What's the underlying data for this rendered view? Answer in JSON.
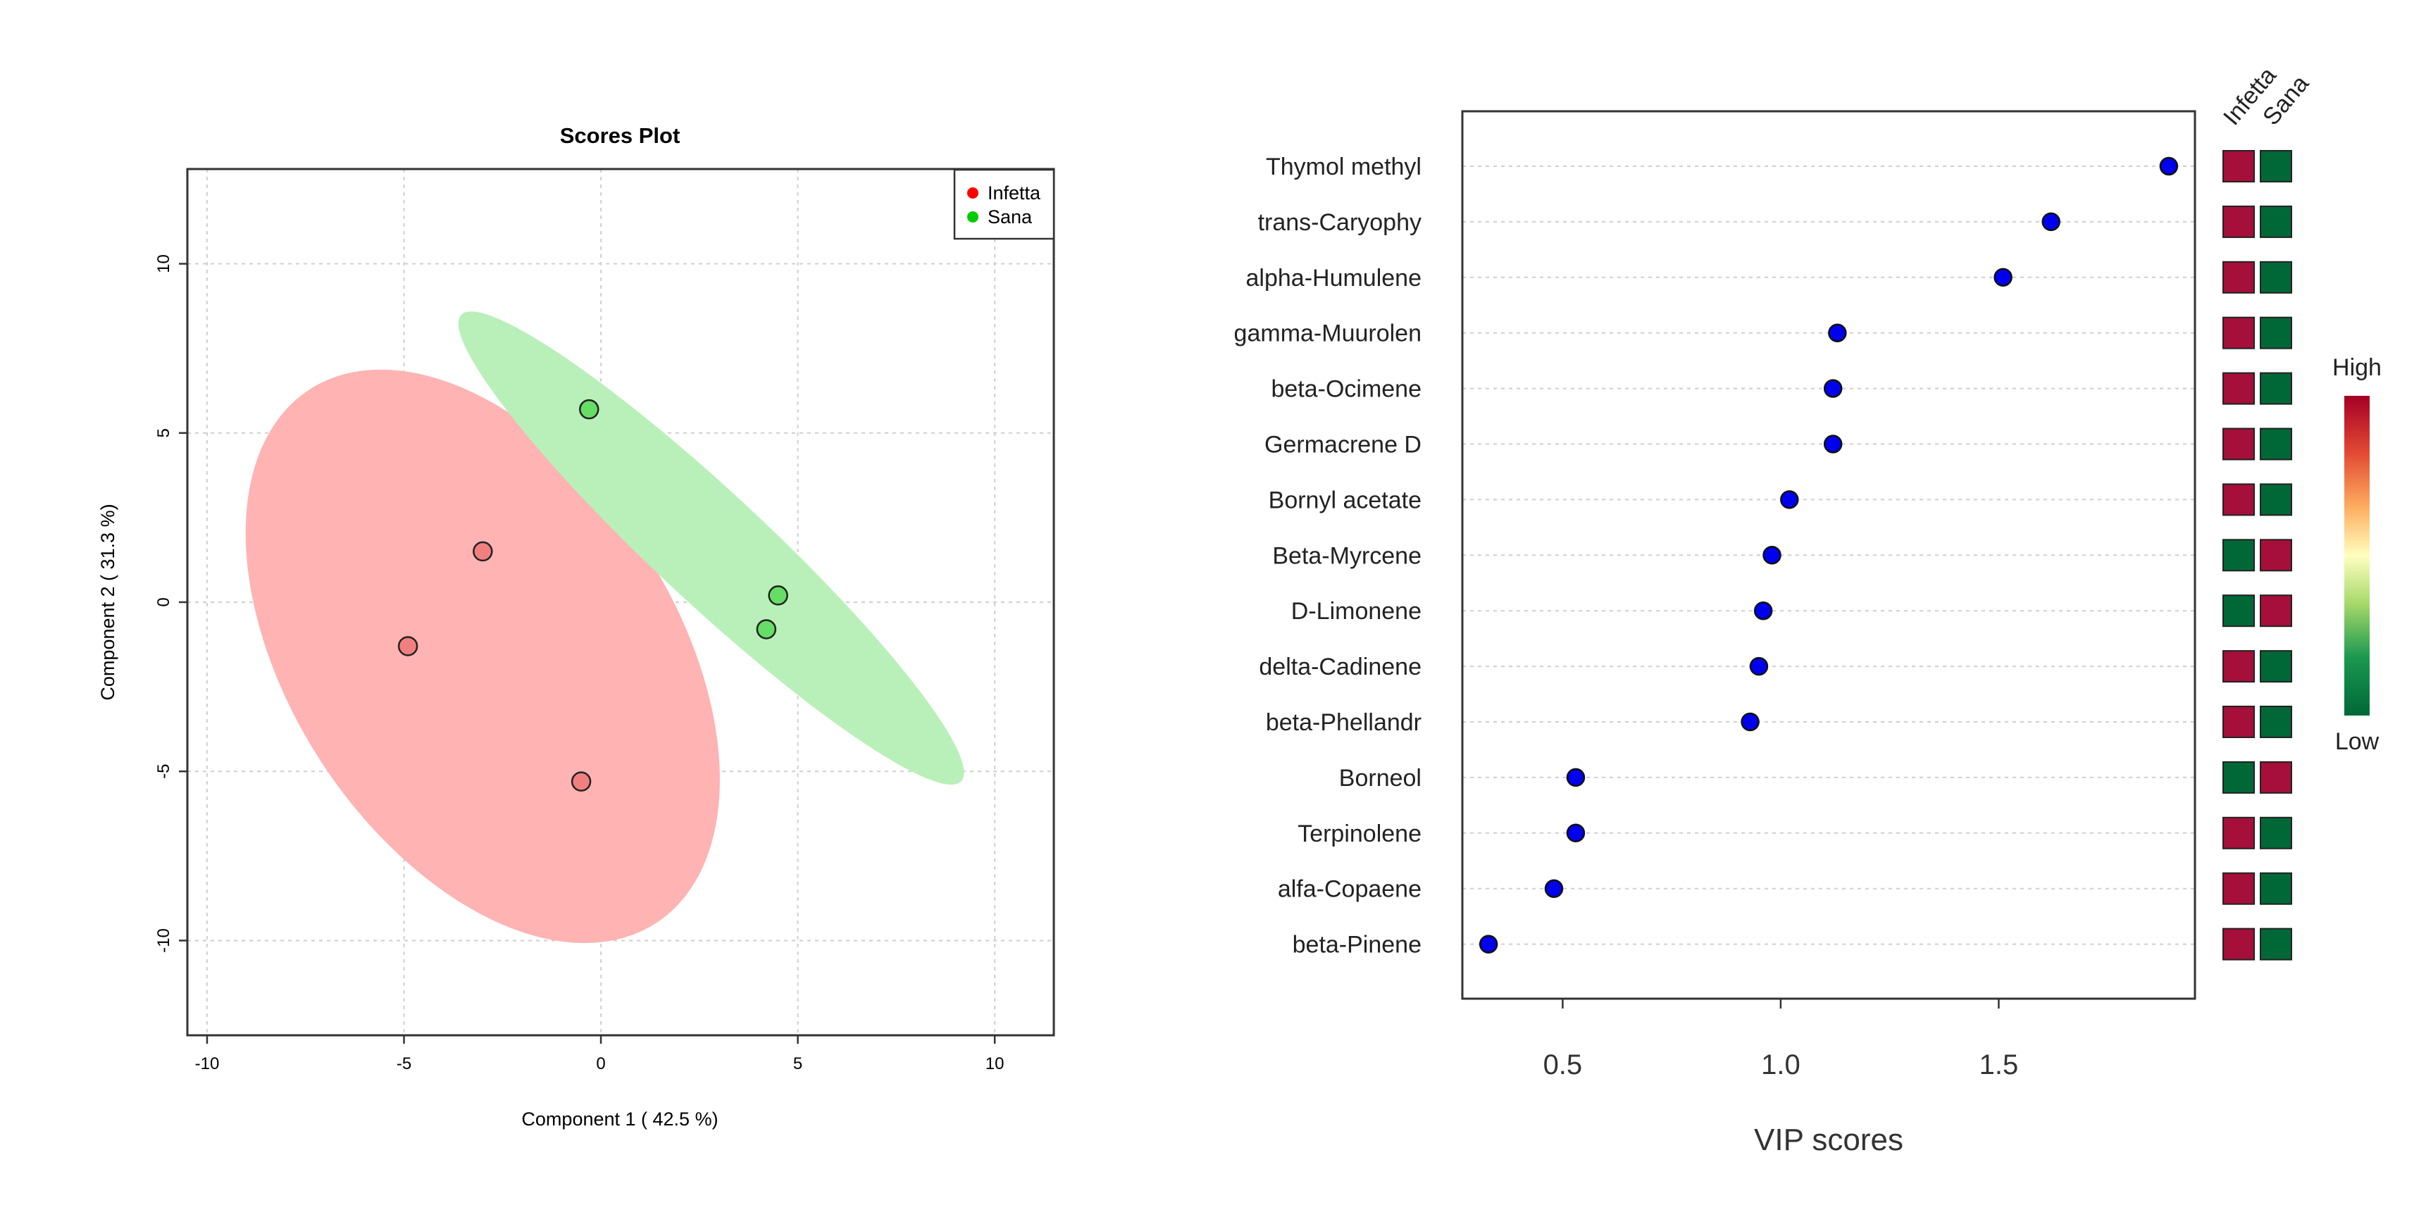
{
  "scores_plot": {
    "title": "Scores Plot",
    "xlabel": "Component 1 ( 42.5 %)",
    "ylabel": "Component 2 ( 31.3 %)",
    "xticks": [
      -10,
      -5,
      0,
      5,
      10
    ],
    "yticks": [
      10,
      5,
      0,
      -5,
      -10
    ],
    "legend": [
      {
        "label": "Infetta",
        "color": "#ff0000"
      },
      {
        "label": "Sana",
        "color": "#00cc00"
      }
    ]
  },
  "vip_plot": {
    "xlabel": "VIP scores",
    "xticks": [
      0.5,
      1.0,
      1.5
    ],
    "xtick_labels": [
      "0.5",
      "1.0",
      "1.5"
    ],
    "group_labels": [
      "Infetta",
      "Sana"
    ],
    "scale_high": "High",
    "scale_low": "Low"
  },
  "colors": {
    "infetta_fill": "#f08080",
    "sana_fill": "#66dd66",
    "infetta_ellipse": "#ffb3b3",
    "sana_ellipse": "#b9f0b9",
    "vip_point": "#0000ee",
    "heat_high": "#a50f3a",
    "heat_low": "#006837"
  },
  "chart_data": [
    {
      "type": "scatter",
      "title": "Scores Plot",
      "xlabel": "Component 1 ( 42.5 %)",
      "ylabel": "Component 2 ( 31.3 %)",
      "xlim": [
        -10.5,
        11.5
      ],
      "ylim": [
        -12.8,
        12.8
      ],
      "grid": true,
      "legend_position": "top-right",
      "series": [
        {
          "name": "Infetta",
          "x": [
            -3.0,
            -4.9,
            -0.5
          ],
          "y": [
            1.5,
            -1.3,
            -5.3
          ]
        },
        {
          "name": "Sana",
          "x": [
            -0.3,
            4.5,
            4.2
          ],
          "y": [
            5.7,
            0.2,
            -0.8
          ]
        }
      ],
      "ellipses": [
        {
          "group": "Infetta",
          "center": [
            -3.0,
            -1.6
          ],
          "semi_axes": [
            4.9,
            9.4
          ],
          "angle_deg": -33
        },
        {
          "group": "Sana",
          "center": [
            2.8,
            1.6
          ],
          "semi_axes": [
            1.4,
            10.1
          ],
          "angle_deg": -47
        }
      ]
    },
    {
      "type": "scatter",
      "xlabel": "VIP scores",
      "xlim": [
        0.27,
        1.95
      ],
      "legend_position": "right",
      "features": [
        "Thymol methyl",
        "trans-Caryophy",
        "alpha-Humulene",
        "gamma-Muurolen",
        "beta-Ocimene",
        "Germacrene D",
        "Bornyl acetate",
        "Beta-Myrcene",
        "D-Limonene",
        "delta-Cadinene",
        "beta-Phellandr",
        "Borneol",
        "Terpinolene",
        "alfa-Copaene",
        "beta-Pinene"
      ],
      "values": [
        1.89,
        1.62,
        1.51,
        1.13,
        1.12,
        1.12,
        1.02,
        0.98,
        0.96,
        0.95,
        0.93,
        0.53,
        0.53,
        0.48,
        0.33
      ],
      "heatmap": {
        "groups": [
          "Infetta",
          "Sana"
        ],
        "levels": [
          [
            "High",
            "Low"
          ],
          [
            "High",
            "Low"
          ],
          [
            "High",
            "Low"
          ],
          [
            "High",
            "Low"
          ],
          [
            "High",
            "Low"
          ],
          [
            "High",
            "Low"
          ],
          [
            "High",
            "Low"
          ],
          [
            "Low",
            "High"
          ],
          [
            "Low",
            "High"
          ],
          [
            "High",
            "Low"
          ],
          [
            "High",
            "Low"
          ],
          [
            "Low",
            "High"
          ],
          [
            "High",
            "Low"
          ],
          [
            "High",
            "Low"
          ],
          [
            "High",
            "Low"
          ]
        ]
      }
    }
  ]
}
